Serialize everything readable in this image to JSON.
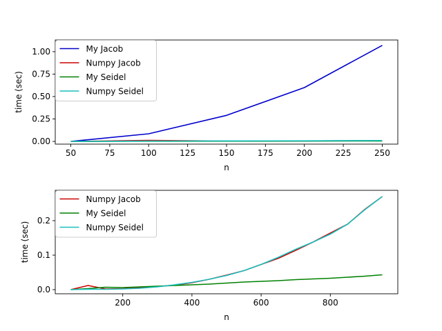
{
  "chart_data": [
    {
      "type": "line",
      "xlabel": "n",
      "ylabel": "time (sec)",
      "xlim": [
        40,
        260
      ],
      "ylim": [
        -0.03,
        1.13
      ],
      "xticks": [
        50,
        75,
        100,
        125,
        150,
        175,
        200,
        225,
        250
      ],
      "xtick_labels": [
        "50",
        "75",
        "100",
        "125",
        "150",
        "175",
        "200",
        "225",
        "250"
      ],
      "yticks": [
        0.0,
        0.25,
        0.5,
        0.75,
        1.0
      ],
      "ytick_labels": [
        "0.00",
        "0.25",
        "0.50",
        "0.75",
        "1.00"
      ],
      "legend_position": "top-left",
      "grid": false,
      "series": [
        {
          "name": "My Jacob",
          "color": "#0000cc",
          "x": [
            50,
            100,
            150,
            200,
            250
          ],
          "y": [
            0.0,
            0.085,
            0.29,
            0.6,
            1.07
          ]
        },
        {
          "name": "Numpy Jacob",
          "color": "#cc0000",
          "x": [
            50,
            100,
            150,
            200,
            250
          ],
          "y": [
            0.0,
            0.012,
            0.004,
            0.005,
            0.009
          ]
        },
        {
          "name": "My Seidel",
          "color": "#008000",
          "x": [
            50,
            100,
            150,
            200,
            250
          ],
          "y": [
            0.0,
            0.002,
            0.003,
            0.004,
            0.005
          ]
        },
        {
          "name": "Numpy Seidel",
          "color": "#17bfbf",
          "x": [
            50,
            100,
            150,
            200,
            250
          ],
          "y": [
            0.0,
            0.004,
            0.006,
            0.007,
            0.01
          ]
        }
      ]
    },
    {
      "type": "line",
      "xlabel": "n",
      "ylabel": "time (sec)",
      "xlim": [
        5,
        995
      ],
      "ylim": [
        -0.012,
        0.288
      ],
      "xticks": [
        200,
        400,
        600,
        800
      ],
      "xtick_labels": [
        "200",
        "400",
        "600",
        "800"
      ],
      "yticks": [
        0.0,
        0.1,
        0.2
      ],
      "ytick_labels": [
        "0.0",
        "0.1",
        "0.2"
      ],
      "legend_position": "top-left",
      "grid": false,
      "series": [
        {
          "name": "Numpy Jacob",
          "color": "#cc0000",
          "x": [
            50,
            100,
            150,
            200,
            250,
            300,
            350,
            400,
            450,
            500,
            550,
            600,
            650,
            700,
            750,
            800,
            850,
            900,
            950
          ],
          "y": [
            0.0,
            0.012,
            0.002,
            0.003,
            0.006,
            0.009,
            0.013,
            0.02,
            0.03,
            0.042,
            0.055,
            0.073,
            0.091,
            0.114,
            0.138,
            0.164,
            0.19,
            0.233,
            0.27
          ]
        },
        {
          "name": "My Seidel",
          "color": "#008000",
          "x": [
            50,
            100,
            150,
            200,
            250,
            300,
            350,
            400,
            450,
            500,
            550,
            600,
            650,
            700,
            750,
            800,
            850,
            900,
            950
          ],
          "y": [
            0.0,
            0.003,
            0.007,
            0.006,
            0.008,
            0.01,
            0.012,
            0.014,
            0.016,
            0.019,
            0.022,
            0.024,
            0.026,
            0.029,
            0.031,
            0.033,
            0.036,
            0.039,
            0.043
          ]
        },
        {
          "name": "Numpy Seidel",
          "color": "#17bfbf",
          "x": [
            50,
            100,
            150,
            200,
            250,
            300,
            350,
            400,
            450,
            500,
            550,
            600,
            650,
            700,
            750,
            800,
            850,
            900,
            950
          ],
          "y": [
            0.0,
            0.001,
            0.001,
            0.002,
            0.004,
            0.008,
            0.014,
            0.021,
            0.03,
            0.041,
            0.055,
            0.073,
            0.094,
            0.117,
            0.138,
            0.161,
            0.19,
            0.232,
            0.27
          ]
        }
      ]
    }
  ]
}
